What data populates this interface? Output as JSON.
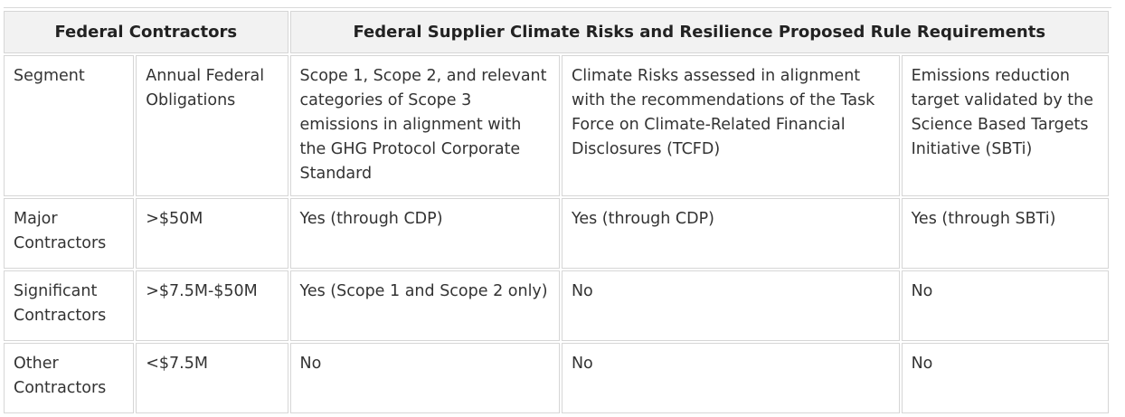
{
  "table": {
    "group_headers": [
      "Federal Contractors",
      "Federal Supplier Climate Risks and Resilience Proposed Rule Requirements"
    ],
    "column_headers": [
      "Segment",
      "Annual Federal Obligations",
      "Scope 1, Scope 2, and relevant categories of Scope 3 emissions in alignment with the GHG Protocol Corporate Standard",
      "Climate Risks assessed in alignment with the recommendations of the Task Force on Climate-Related Financial Disclosures (TCFD)",
      "Emissions reduction target validated by the Science Based Targets Initiative (SBTi)"
    ],
    "rows": [
      [
        "Major Contractors",
        ">$50M",
        "Yes (through CDP)",
        "Yes (through CDP)",
        "Yes (through SBTi)"
      ],
      [
        "Significant Contractors",
        ">$7.5M-$50M",
        "Yes (Scope 1 and Scope 2 only)",
        "No",
        "No"
      ],
      [
        "Other Contractors",
        "<$7.5M",
        "No",
        "No",
        "No"
      ]
    ]
  }
}
